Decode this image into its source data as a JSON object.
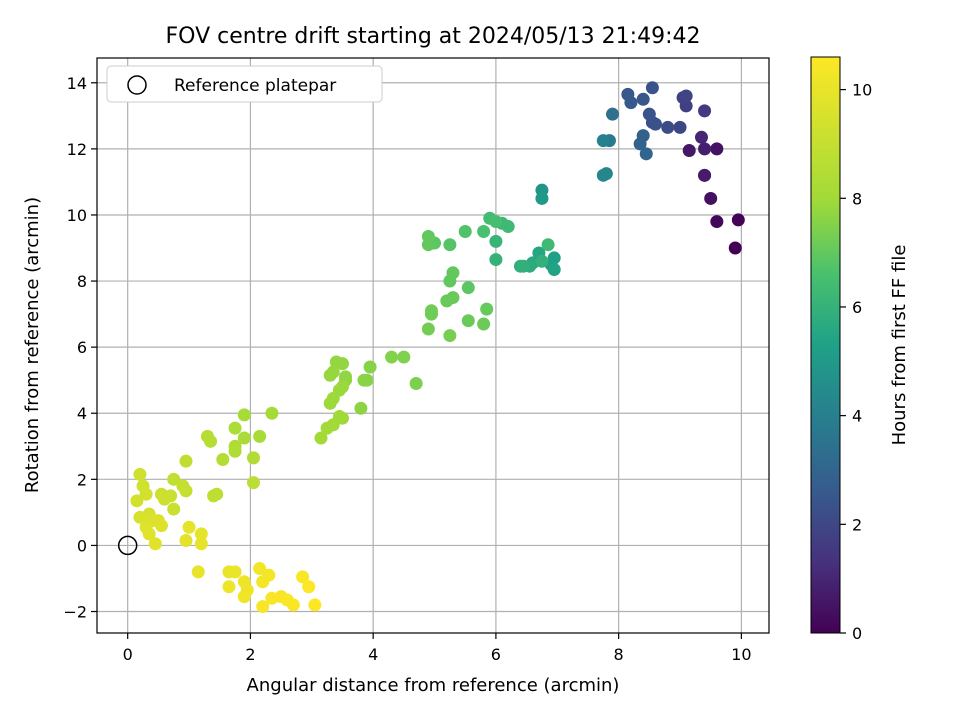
{
  "chart_data": {
    "type": "scatter",
    "title": "FOV centre drift starting at 2024/05/13 21:49:42",
    "xlabel": "Angular distance from reference (arcmin)",
    "ylabel": "Rotation from reference (arcmin)",
    "xlim": [
      -0.5,
      10.45
    ],
    "ylim": [
      -2.65,
      14.75
    ],
    "xticks": [
      "0",
      "2",
      "4",
      "6",
      "8",
      "10"
    ],
    "yticks": [
      "−2",
      "0",
      "2",
      "4",
      "6",
      "8",
      "10",
      "12",
      "14"
    ],
    "grid": true,
    "legend": {
      "placement": "top-left",
      "entries": [
        "Reference platepar"
      ]
    },
    "colorbar": {
      "label": "Hours from first FF file",
      "range": [
        0,
        10.6
      ],
      "ticks": [
        "0",
        "2",
        "4",
        "6",
        "8",
        "10"
      ],
      "colormap": "viridis"
    },
    "reference_point": {
      "x": 0,
      "y": 0
    },
    "points": [
      [
        9.9,
        9.0,
        0.0
      ],
      [
        9.95,
        9.85,
        0.05
      ],
      [
        9.6,
        9.8,
        0.2
      ],
      [
        9.5,
        10.5,
        0.4
      ],
      [
        9.4,
        11.2,
        0.6
      ],
      [
        9.4,
        11.2,
        0.7
      ],
      [
        9.6,
        12.0,
        0.5
      ],
      [
        9.4,
        12.0,
        0.8
      ],
      [
        9.15,
        11.95,
        0.6
      ],
      [
        9.35,
        12.35,
        1.0
      ],
      [
        9.4,
        13.15,
        1.5
      ],
      [
        9.1,
        13.3,
        1.7
      ],
      [
        9.05,
        13.55,
        1.8
      ],
      [
        9.1,
        13.6,
        1.9
      ],
      [
        9.0,
        12.65,
        2.0
      ],
      [
        8.8,
        12.65,
        2.1
      ],
      [
        8.55,
        12.8,
        2.2
      ],
      [
        8.6,
        12.75,
        2.3
      ],
      [
        8.5,
        13.05,
        2.4
      ],
      [
        8.55,
        13.85,
        2.4
      ],
      [
        8.4,
        13.5,
        2.5
      ],
      [
        8.15,
        13.65,
        2.5
      ],
      [
        8.2,
        13.4,
        2.6
      ],
      [
        8.4,
        12.4,
        2.8
      ],
      [
        8.35,
        12.15,
        2.9
      ],
      [
        8.45,
        11.85,
        3.0
      ],
      [
        7.9,
        13.05,
        3.4
      ],
      [
        7.85,
        12.25,
        3.8
      ],
      [
        7.75,
        12.25,
        4.0
      ],
      [
        7.8,
        11.25,
        4.2
      ],
      [
        7.75,
        11.2,
        4.3
      ],
      [
        6.75,
        10.75,
        4.8
      ],
      [
        6.75,
        10.5,
        5.0
      ],
      [
        6.9,
        8.5,
        5.2
      ],
      [
        6.95,
        8.7,
        5.3
      ],
      [
        6.95,
        8.35,
        5.4
      ],
      [
        6.7,
        8.85,
        5.5
      ],
      [
        6.6,
        8.55,
        5.6
      ],
      [
        6.55,
        8.45,
        5.7
      ],
      [
        6.4,
        8.45,
        5.8
      ],
      [
        6.45,
        8.45,
        5.9
      ],
      [
        6.75,
        8.6,
        5.95
      ],
      [
        6.85,
        9.1,
        6.3
      ],
      [
        6.0,
        8.65,
        6.0
      ],
      [
        6.0,
        9.2,
        6.1
      ],
      [
        6.1,
        9.75,
        6.2
      ],
      [
        6.2,
        9.65,
        6.3
      ],
      [
        5.9,
        9.9,
        6.4
      ],
      [
        6.0,
        9.8,
        6.5
      ],
      [
        5.8,
        9.5,
        6.6
      ],
      [
        5.5,
        9.5,
        6.7
      ],
      [
        5.25,
        9.1,
        6.8
      ],
      [
        5.0,
        9.15,
        6.9
      ],
      [
        4.9,
        9.1,
        7.0
      ],
      [
        4.9,
        9.35,
        7.0
      ],
      [
        5.55,
        7.8,
        6.9
      ],
      [
        5.3,
        8.25,
        7.0
      ],
      [
        5.25,
        8.0,
        7.0
      ],
      [
        5.85,
        7.15,
        7.05
      ],
      [
        5.2,
        7.4,
        7.1
      ],
      [
        5.3,
        7.5,
        7.1
      ],
      [
        5.55,
        6.8,
        7.1
      ],
      [
        5.8,
        6.7,
        7.15
      ],
      [
        4.95,
        7.1,
        7.2
      ],
      [
        4.95,
        7.0,
        7.2
      ],
      [
        4.9,
        6.55,
        7.25
      ],
      [
        5.25,
        6.35,
        7.3
      ],
      [
        4.7,
        4.9,
        7.4
      ],
      [
        4.5,
        5.7,
        7.45
      ],
      [
        4.3,
        5.7,
        7.5
      ],
      [
        3.95,
        5.4,
        7.55
      ],
      [
        3.9,
        5.0,
        7.6
      ],
      [
        3.85,
        5.0,
        7.6
      ],
      [
        3.8,
        4.15,
        7.65
      ],
      [
        3.55,
        5.0,
        7.7
      ],
      [
        3.55,
        5.1,
        7.7
      ],
      [
        3.5,
        5.5,
        7.75
      ],
      [
        3.4,
        5.55,
        7.75
      ],
      [
        3.35,
        5.25,
        7.8
      ],
      [
        3.3,
        5.15,
        7.8
      ],
      [
        3.45,
        4.7,
        7.85
      ],
      [
        3.5,
        4.8,
        7.85
      ],
      [
        3.35,
        4.45,
        7.9
      ],
      [
        3.3,
        4.3,
        7.9
      ],
      [
        3.45,
        3.9,
        7.95
      ],
      [
        3.5,
        3.85,
        7.95
      ],
      [
        3.35,
        3.65,
        8.0
      ],
      [
        3.25,
        3.55,
        8.0
      ],
      [
        3.15,
        3.25,
        8.05
      ],
      [
        2.35,
        4.0,
        8.1
      ],
      [
        1.9,
        3.95,
        8.15
      ],
      [
        2.15,
        3.3,
        8.2
      ],
      [
        1.9,
        3.25,
        8.25
      ],
      [
        1.75,
        3.55,
        8.3
      ],
      [
        1.75,
        3.0,
        8.35
      ],
      [
        1.75,
        2.85,
        8.4
      ],
      [
        2.05,
        2.65,
        8.45
      ],
      [
        1.55,
        2.6,
        8.5
      ],
      [
        1.35,
        3.15,
        8.55
      ],
      [
        1.3,
        3.3,
        8.6
      ],
      [
        2.05,
        1.9,
        8.7
      ],
      [
        1.45,
        1.55,
        8.75
      ],
      [
        1.4,
        1.5,
        8.8
      ],
      [
        0.95,
        2.55,
        8.85
      ],
      [
        0.75,
        2.0,
        8.9
      ],
      [
        0.9,
        1.8,
        9.0
      ],
      [
        0.95,
        1.65,
        9.05
      ],
      [
        0.7,
        1.5,
        9.1
      ],
      [
        0.75,
        1.1,
        9.15
      ],
      [
        0.55,
        1.55,
        9.2
      ],
      [
        0.6,
        1.4,
        9.25
      ],
      [
        0.2,
        2.15,
        9.3
      ],
      [
        0.25,
        1.8,
        9.3
      ],
      [
        0.3,
        1.55,
        9.35
      ],
      [
        0.15,
        1.35,
        9.4
      ],
      [
        0.35,
        0.95,
        9.45
      ],
      [
        0.3,
        0.8,
        9.5
      ],
      [
        0.2,
        0.85,
        9.55
      ],
      [
        0.4,
        0.75,
        9.6
      ],
      [
        0.5,
        0.75,
        9.65
      ],
      [
        0.55,
        0.6,
        9.7
      ],
      [
        0.35,
        0.35,
        9.75
      ],
      [
        0.3,
        0.55,
        9.75
      ],
      [
        0.45,
        0.05,
        9.8
      ],
      [
        0.95,
        0.15,
        9.85
      ],
      [
        1.0,
        0.55,
        9.9
      ],
      [
        1.2,
        0.35,
        9.9
      ],
      [
        1.2,
        0.05,
        9.95
      ],
      [
        1.15,
        -0.8,
        10.0
      ],
      [
        1.65,
        -0.8,
        10.05
      ],
      [
        1.75,
        -0.8,
        10.1
      ],
      [
        1.65,
        -1.25,
        10.15
      ],
      [
        1.9,
        -1.1,
        10.2
      ],
      [
        1.95,
        -1.35,
        10.2
      ],
      [
        1.9,
        -1.55,
        10.25
      ],
      [
        2.15,
        -0.7,
        10.3
      ],
      [
        2.3,
        -0.9,
        10.3
      ],
      [
        2.2,
        -1.1,
        10.35
      ],
      [
        2.2,
        -1.85,
        10.4
      ],
      [
        2.35,
        -1.6,
        10.4
      ],
      [
        2.5,
        -1.55,
        10.45
      ],
      [
        2.6,
        -1.65,
        10.5
      ],
      [
        2.7,
        -1.8,
        10.5
      ],
      [
        2.85,
        -0.95,
        10.5
      ],
      [
        2.95,
        -1.25,
        10.55
      ],
      [
        3.05,
        -1.8,
        10.6
      ]
    ]
  }
}
